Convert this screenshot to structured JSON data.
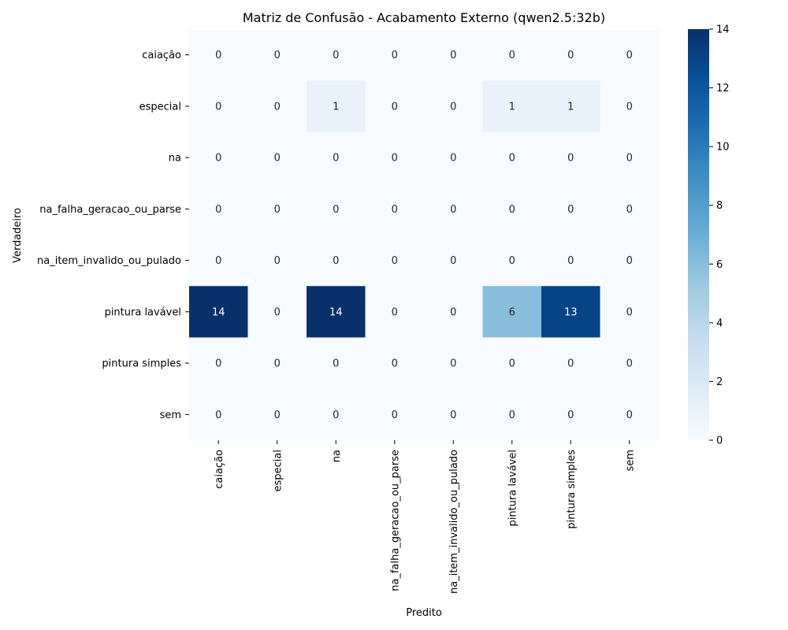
{
  "chart_data": {
    "type": "heatmap",
    "title": "Matriz de Confusão - Acabamento Externo (qwen2.5:32b)",
    "xlabel": "Predito",
    "ylabel": "Verdadeiro",
    "rows": [
      "caiação",
      "especial",
      "na",
      "na_falha_geracao_ou_parse",
      "na_item_invalido_ou_pulado",
      "pintura lavável",
      "pintura simples",
      "sem"
    ],
    "columns": [
      "caiação",
      "especial",
      "na",
      "na_falha_geracao_ou_parse",
      "na_item_invalido_ou_pulado",
      "pintura lavável",
      "pintura simples",
      "sem"
    ],
    "values": [
      [
        0,
        0,
        0,
        0,
        0,
        0,
        0,
        0
      ],
      [
        0,
        0,
        1,
        0,
        0,
        1,
        1,
        0
      ],
      [
        0,
        0,
        0,
        0,
        0,
        0,
        0,
        0
      ],
      [
        0,
        0,
        0,
        0,
        0,
        0,
        0,
        0
      ],
      [
        0,
        0,
        0,
        0,
        0,
        0,
        0,
        0
      ],
      [
        14,
        0,
        14,
        0,
        0,
        6,
        13,
        0
      ],
      [
        0,
        0,
        0,
        0,
        0,
        0,
        0,
        0
      ],
      [
        0,
        0,
        0,
        0,
        0,
        0,
        0,
        0
      ]
    ],
    "colorbar": {
      "min": 0,
      "max": 14,
      "ticks": [
        0,
        2,
        4,
        6,
        8,
        10,
        12,
        14
      ]
    },
    "colormap": [
      "#f7fbff",
      "#deebf7",
      "#c6dbef",
      "#9ecae1",
      "#6baed6",
      "#4292c6",
      "#2171b5",
      "#08519c",
      "#08306b"
    ],
    "annotation_color_light": "#ffffff",
    "annotation_color_dark": "#262626"
  }
}
